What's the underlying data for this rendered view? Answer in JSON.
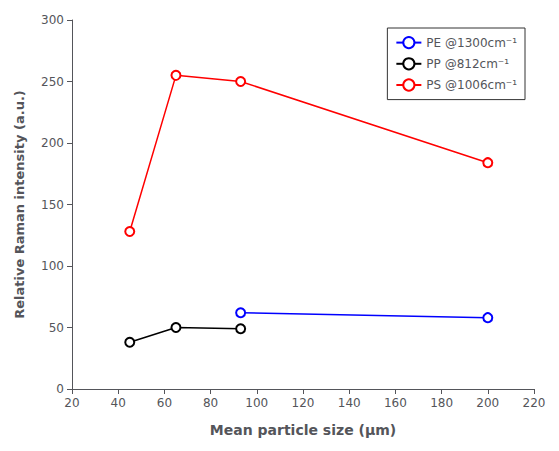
{
  "chart_data": {
    "type": "line",
    "xlabel": "Mean particle size (μm)",
    "ylabel": "Relative Raman intensity (a.u.)",
    "xlim": [
      20,
      220
    ],
    "ylim": [
      0,
      300
    ],
    "xticks": [
      20,
      40,
      60,
      80,
      100,
      120,
      140,
      160,
      180,
      200,
      220
    ],
    "yticks": [
      0,
      50,
      100,
      150,
      200,
      250,
      300
    ],
    "grid": false,
    "legend": "upper right",
    "series": [
      {
        "name": "PE @1300cm⁻¹",
        "color": "blue",
        "marker": "circle",
        "x": [
          93,
          200
        ],
        "values": [
          62,
          58
        ]
      },
      {
        "name": "PP @812cm⁻¹",
        "color": "black",
        "marker": "circle",
        "x": [
          45,
          65,
          93
        ],
        "values": [
          38,
          50,
          49
        ]
      },
      {
        "name": "PS @1006cm⁻¹",
        "color": "red",
        "marker": "circle",
        "x": [
          45,
          65,
          93,
          200
        ],
        "values": [
          128,
          255,
          250,
          184
        ]
      }
    ]
  }
}
